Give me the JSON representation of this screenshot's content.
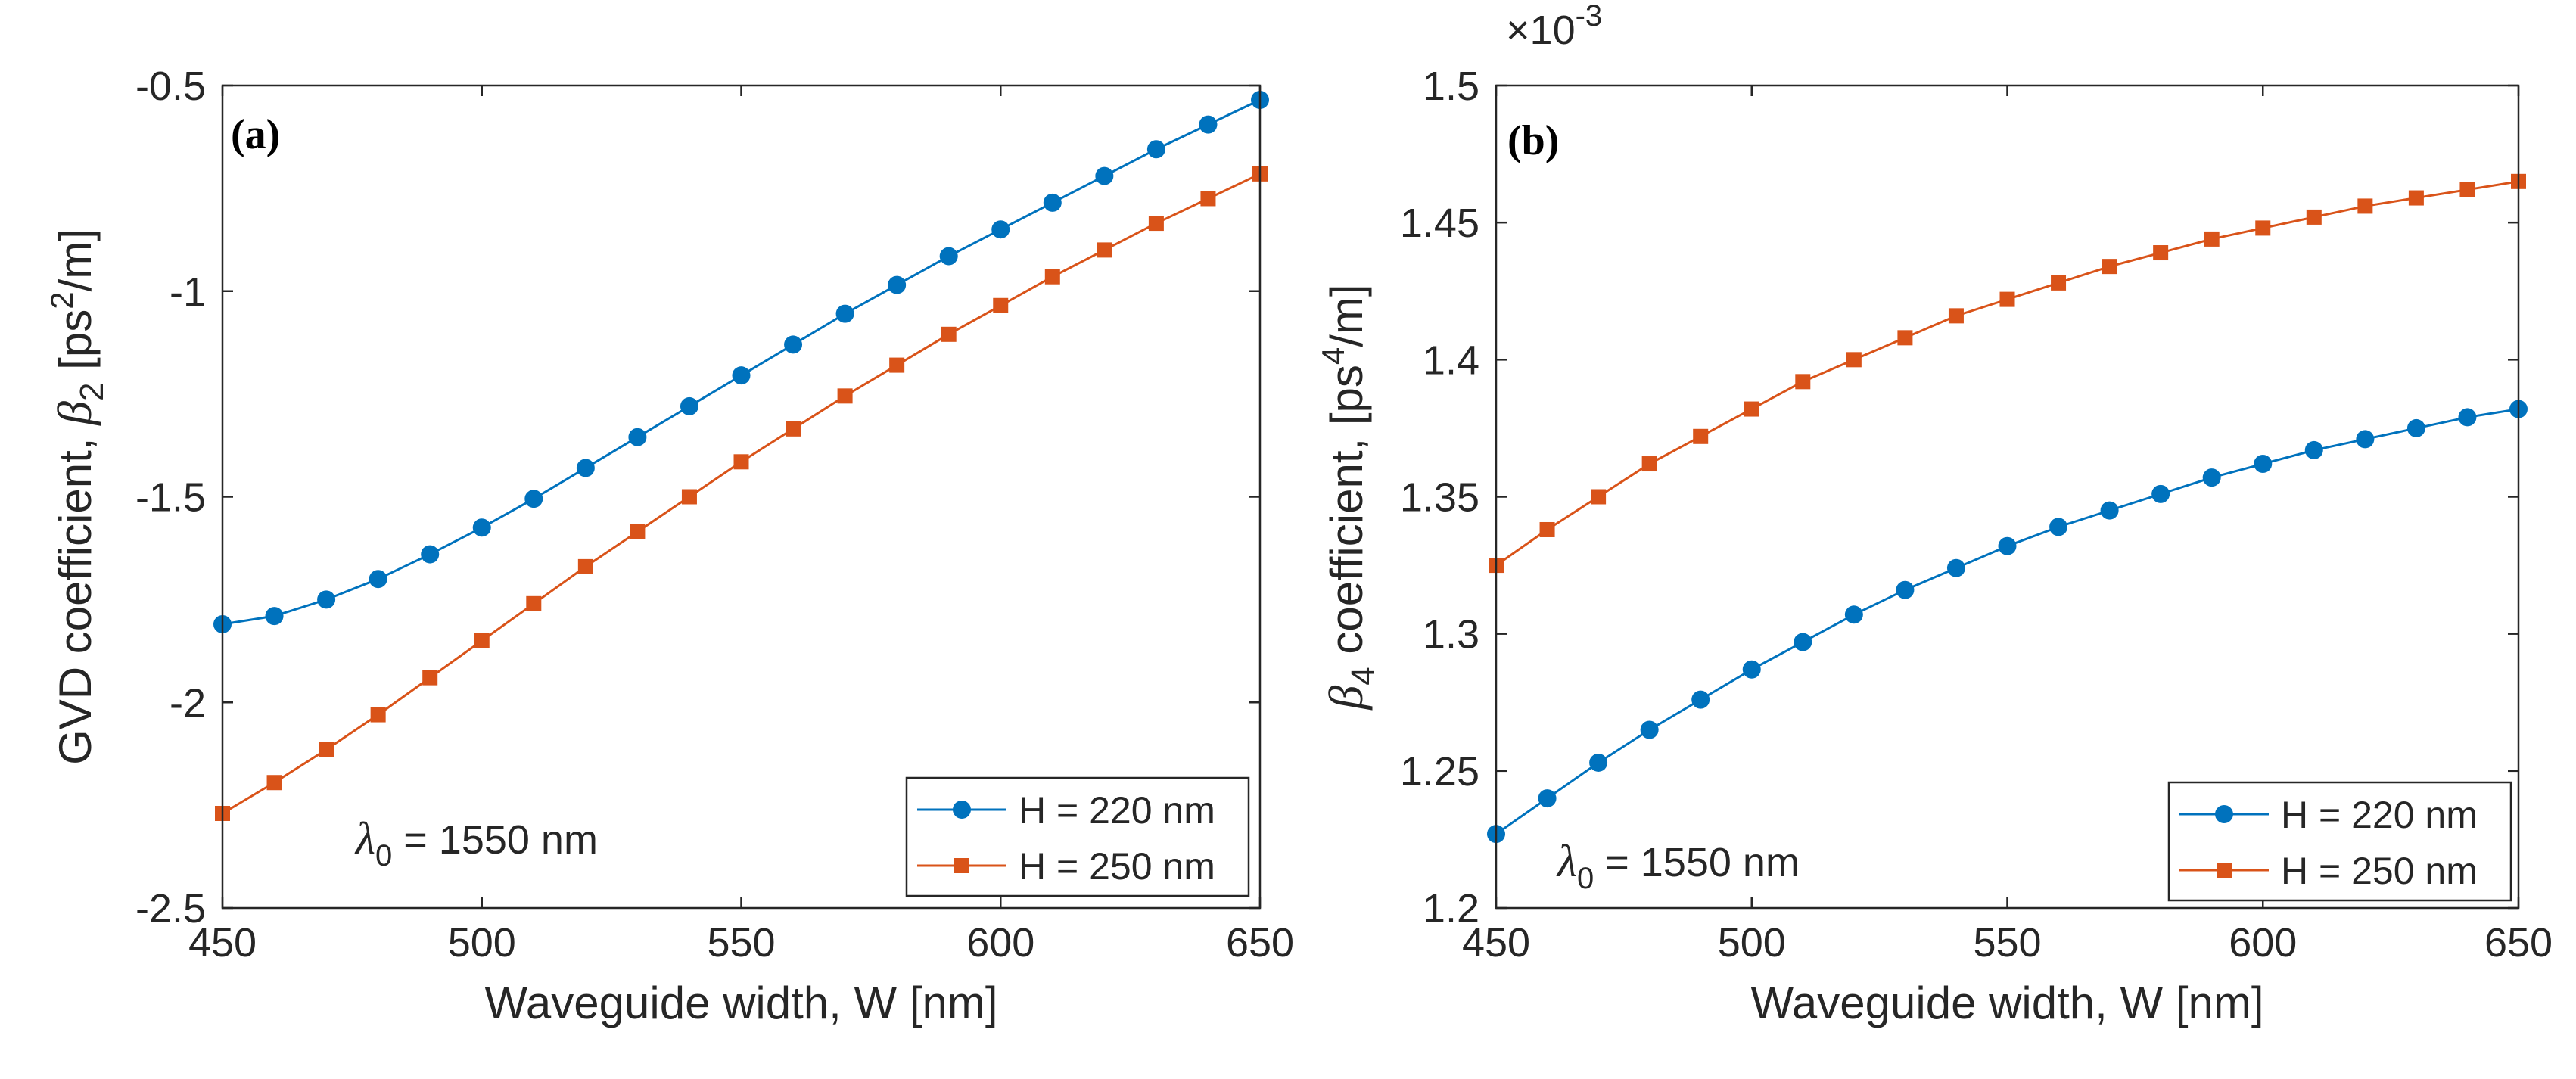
{
  "chart_data": [
    {
      "type": "line",
      "panel_label": "(a)",
      "x": [
        450,
        460,
        470,
        480,
        490,
        500,
        510,
        520,
        530,
        540,
        550,
        560,
        570,
        580,
        590,
        600,
        610,
        620,
        630,
        640,
        650
      ],
      "series": [
        {
          "name": "H = 220 nm",
          "color": "#0072BD",
          "marker": "circle",
          "values": [
            -1.81,
            -1.79,
            -1.75,
            -1.7,
            -1.64,
            -1.575,
            -1.505,
            -1.43,
            -1.355,
            -1.28,
            -1.205,
            -1.13,
            -1.055,
            -0.985,
            -0.915,
            -0.85,
            -0.785,
            -0.72,
            -0.655,
            -0.595,
            -0.535
          ]
        },
        {
          "name": "H = 250 nm",
          "color": "#D95319",
          "marker": "square",
          "values": [
            -2.27,
            -2.195,
            -2.115,
            -2.03,
            -1.94,
            -1.85,
            -1.76,
            -1.67,
            -1.585,
            -1.5,
            -1.415,
            -1.335,
            -1.255,
            -1.18,
            -1.105,
            -1.035,
            -0.965,
            -0.9,
            -0.835,
            -0.775,
            -0.715
          ]
        }
      ],
      "xlabel": "Waveguide width, W  [nm]",
      "ylabel_prefix": "GVD coefficient, ",
      "ylabel_symbol": "β",
      "ylabel_subscript": "2",
      "ylabel_unit_pre": "[ps",
      "ylabel_unit_sup": "2",
      "ylabel_unit_post": "/m]",
      "xlim": [
        450,
        650
      ],
      "ylim": [
        -2.5,
        -0.5
      ],
      "xticks": [
        450,
        500,
        550,
        600,
        650
      ],
      "yticks": [
        -2.5,
        -2,
        -1.5,
        -1,
        -0.5
      ],
      "xtick_labels": [
        "450",
        "500",
        "550",
        "600",
        "650"
      ],
      "ytick_labels": [
        "-2.5",
        "-2",
        "-1.5",
        "-1",
        "-0.5"
      ],
      "annotation_symbol": "λ",
      "annotation_subscript": "0",
      "annotation_text": " = 1550 nm",
      "legend_location": "bottom-right",
      "exponent_label": ""
    },
    {
      "type": "line",
      "panel_label": "(b)",
      "x": [
        450,
        460,
        470,
        480,
        490,
        500,
        510,
        520,
        530,
        540,
        550,
        560,
        570,
        580,
        590,
        600,
        610,
        620,
        630,
        640,
        650
      ],
      "series": [
        {
          "name": "H = 220 nm",
          "color": "#0072BD",
          "marker": "circle",
          "values": [
            1.227,
            1.24,
            1.253,
            1.265,
            1.276,
            1.287,
            1.297,
            1.307,
            1.316,
            1.324,
            1.332,
            1.339,
            1.345,
            1.351,
            1.357,
            1.362,
            1.367,
            1.371,
            1.375,
            1.379,
            1.382
          ]
        },
        {
          "name": "H = 250 nm",
          "color": "#D95319",
          "marker": "square",
          "values": [
            1.325,
            1.338,
            1.35,
            1.362,
            1.372,
            1.382,
            1.392,
            1.4,
            1.408,
            1.416,
            1.422,
            1.428,
            1.434,
            1.439,
            1.444,
            1.448,
            1.452,
            1.456,
            1.459,
            1.462,
            1.465
          ]
        }
      ],
      "xlabel": "Waveguide width, W  [nm]",
      "ylabel_prefix": "",
      "ylabel_symbol": "β",
      "ylabel_subscript": "4",
      "ylabel_unit_pre": "coefficient,   [ps",
      "ylabel_unit_sup": "4",
      "ylabel_unit_post": "/m]",
      "xlim": [
        450,
        650
      ],
      "ylim": [
        1.2,
        1.5
      ],
      "xticks": [
        450,
        500,
        550,
        600,
        650
      ],
      "yticks": [
        1.2,
        1.25,
        1.3,
        1.35,
        1.4,
        1.45,
        1.5
      ],
      "xtick_labels": [
        "450",
        "500",
        "550",
        "600",
        "650"
      ],
      "ytick_labels": [
        "1.2",
        "1.25",
        "1.3",
        "1.35",
        "1.4",
        "1.45",
        "1.5"
      ],
      "annotation_symbol": "λ",
      "annotation_subscript": "0",
      "annotation_text": " = 1550 nm",
      "legend_location": "bottom-right",
      "exponent_label": "×10",
      "exponent_power": "-3"
    }
  ]
}
